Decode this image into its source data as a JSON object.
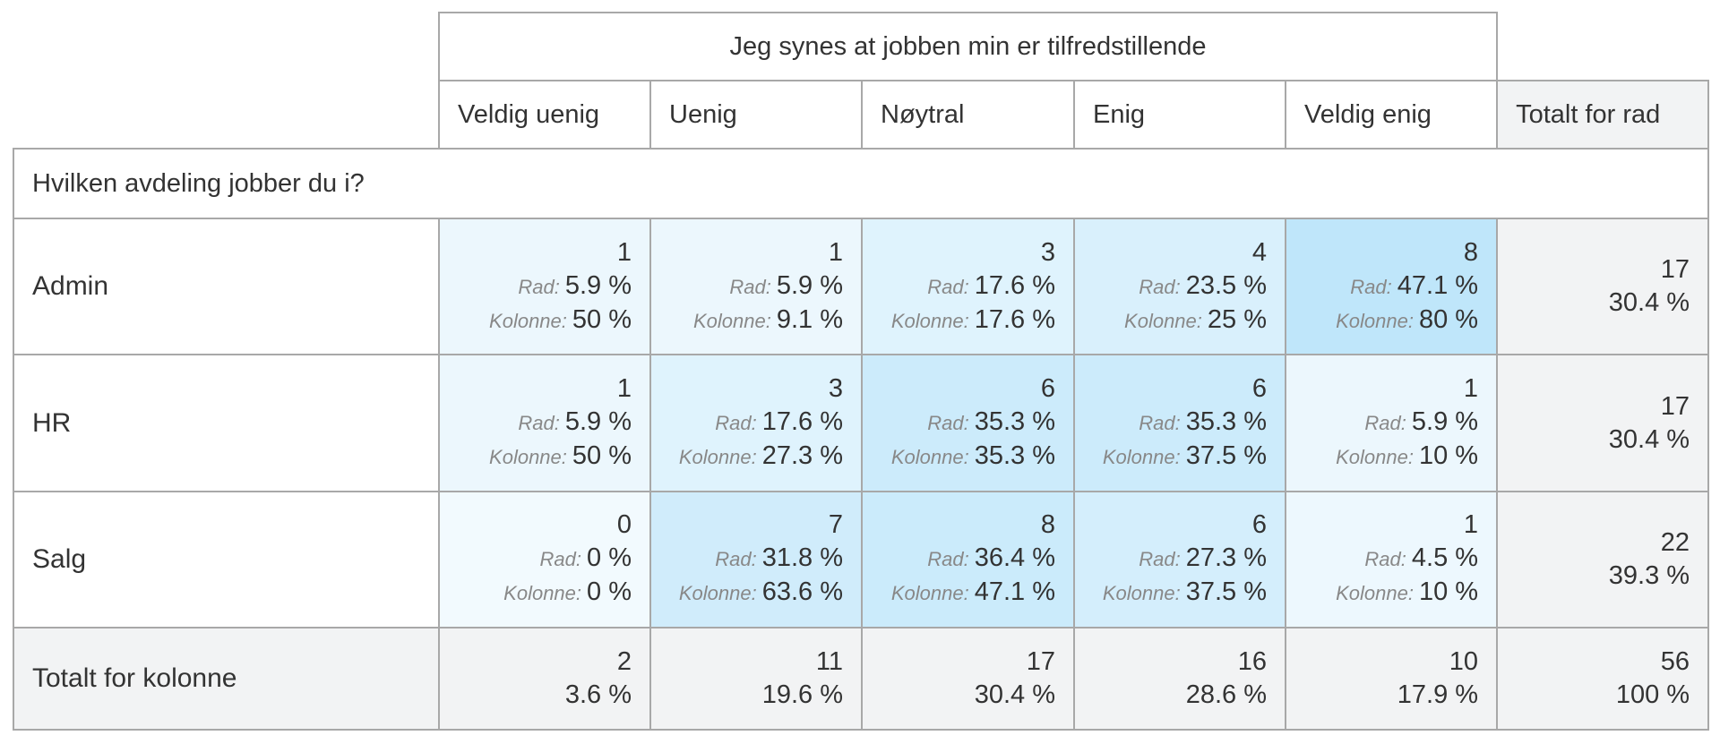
{
  "chart_data": {
    "type": "table",
    "column_question": "Jeg synes at jobben min er tilfredstillende",
    "row_question": "Hvilken avdeling jobber du i?",
    "columns": [
      "Veldig uenig",
      "Uenig",
      "Nøytral",
      "Enig",
      "Veldig enig"
    ],
    "row_total_label": "Totalt for rad",
    "column_total_label": "Totalt for kolonne",
    "row_pct_label": "Rad:",
    "col_pct_label": "Kolonne:",
    "rows": [
      {
        "label": "Admin",
        "cells": [
          {
            "count": "1",
            "row_pct": "5.9 %",
            "col_pct": "50 %"
          },
          {
            "count": "1",
            "row_pct": "5.9 %",
            "col_pct": "9.1 %"
          },
          {
            "count": "3",
            "row_pct": "17.6 %",
            "col_pct": "17.6 %"
          },
          {
            "count": "4",
            "row_pct": "23.5 %",
            "col_pct": "25 %"
          },
          {
            "count": "8",
            "row_pct": "47.1 %",
            "col_pct": "80 %"
          }
        ],
        "total": {
          "count": "17",
          "pct": "30.4 %"
        }
      },
      {
        "label": "HR",
        "cells": [
          {
            "count": "1",
            "row_pct": "5.9 %",
            "col_pct": "50 %"
          },
          {
            "count": "3",
            "row_pct": "17.6 %",
            "col_pct": "27.3 %"
          },
          {
            "count": "6",
            "row_pct": "35.3 %",
            "col_pct": "35.3 %"
          },
          {
            "count": "6",
            "row_pct": "35.3 %",
            "col_pct": "37.5 %"
          },
          {
            "count": "1",
            "row_pct": "5.9 %",
            "col_pct": "10 %"
          }
        ],
        "total": {
          "count": "17",
          "pct": "30.4 %"
        }
      },
      {
        "label": "Salg",
        "cells": [
          {
            "count": "0",
            "row_pct": "0 %",
            "col_pct": "0 %"
          },
          {
            "count": "7",
            "row_pct": "31.8 %",
            "col_pct": "63.6 %"
          },
          {
            "count": "8",
            "row_pct": "36.4 %",
            "col_pct": "47.1 %"
          },
          {
            "count": "6",
            "row_pct": "27.3 %",
            "col_pct": "37.5 %"
          },
          {
            "count": "1",
            "row_pct": "4.5 %",
            "col_pct": "10 %"
          }
        ],
        "total": {
          "count": "22",
          "pct": "39.3 %"
        }
      }
    ],
    "column_totals": [
      {
        "count": "2",
        "pct": "3.6 %"
      },
      {
        "count": "11",
        "pct": "19.6 %"
      },
      {
        "count": "17",
        "pct": "30.4 %"
      },
      {
        "count": "16",
        "pct": "28.6 %"
      },
      {
        "count": "10",
        "pct": "17.9 %"
      }
    ],
    "grand_total": {
      "count": "56",
      "pct": "100 %"
    }
  },
  "colors": {
    "heat_low": "#f2fafe",
    "heat_high": "#bfe6fa",
    "total_bg": "#f2f3f4",
    "border": "#a8a8a8",
    "text": "#333333",
    "label_muted": "#888888"
  }
}
